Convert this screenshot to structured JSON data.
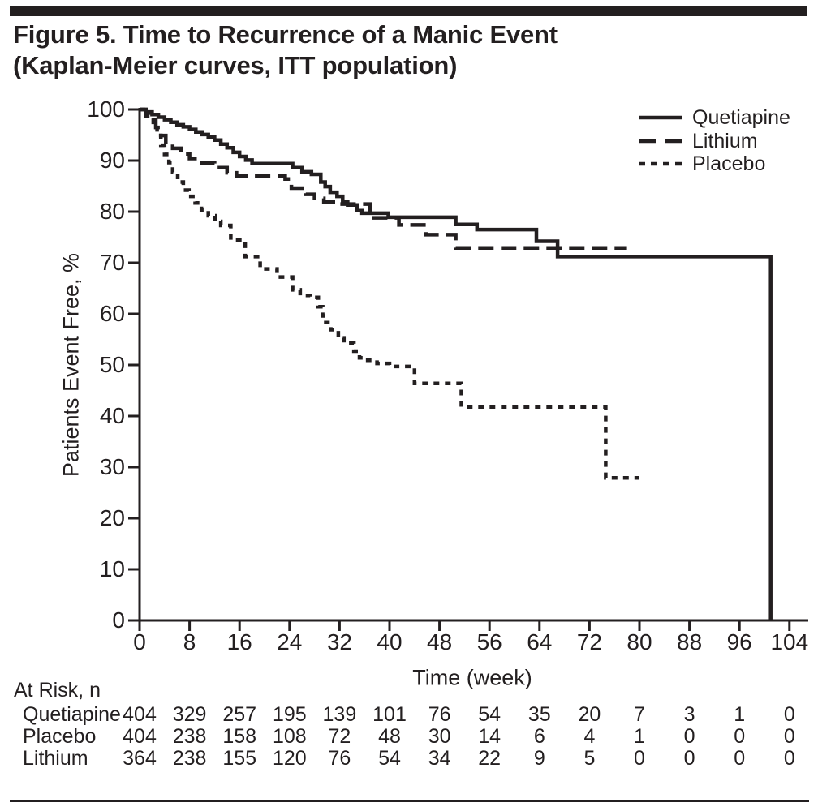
{
  "title": {
    "line1": "Figure 5. Time to Recurrence of a Manic Event",
    "line2": "(Kaplan-Meier curves, ITT population)"
  },
  "colors": {
    "ink": "#231f20",
    "background": "#ffffff"
  },
  "chart_data": {
    "type": "line",
    "subtype": "kaplan-meier-step",
    "title": "Figure 5. Time to Recurrence of a Manic Event (Kaplan-Meier curves, ITT population)",
    "xlabel": "Time (week)",
    "ylabel": "Patients Event Free, %",
    "xlim": [
      0,
      104
    ],
    "ylim": [
      0,
      100
    ],
    "x_ticks": [
      0,
      8,
      16,
      24,
      32,
      40,
      48,
      56,
      64,
      72,
      80,
      88,
      96,
      104
    ],
    "y_ticks": [
      0,
      10,
      20,
      30,
      40,
      50,
      60,
      70,
      80,
      90,
      100
    ],
    "grid": false,
    "legend_position": "top-right",
    "series": [
      {
        "name": "Quetiapine",
        "style": "solid",
        "points": [
          [
            0,
            100
          ],
          [
            1,
            99.5
          ],
          [
            2,
            99
          ],
          [
            3,
            98.5
          ],
          [
            4,
            98
          ],
          [
            5,
            97.5
          ],
          [
            6,
            97
          ],
          [
            7,
            96.6
          ],
          [
            8,
            96.1
          ],
          [
            9,
            95.6
          ],
          [
            10,
            95.1
          ],
          [
            11,
            94.6
          ],
          [
            12,
            94
          ],
          [
            13,
            93.2
          ],
          [
            14,
            92.5
          ],
          [
            15,
            91.6
          ],
          [
            16,
            90.8
          ],
          [
            17,
            90.1
          ],
          [
            18,
            89.4
          ],
          [
            24.5,
            88.6
          ],
          [
            26,
            87.8
          ],
          [
            27.5,
            87.3
          ],
          [
            29,
            85.8
          ],
          [
            29.7,
            84.9
          ],
          [
            30.5,
            83.8
          ],
          [
            31.6,
            83
          ],
          [
            32.5,
            82
          ],
          [
            33.3,
            81.3
          ],
          [
            34.8,
            80.2
          ],
          [
            35.6,
            79.7
          ],
          [
            39.8,
            78.9
          ],
          [
            50.6,
            77.5
          ],
          [
            54,
            76.5
          ],
          [
            63.5,
            74.2
          ],
          [
            66.9,
            71.2
          ],
          [
            101,
            0
          ]
        ]
      },
      {
        "name": "Lithium",
        "style": "long-dash",
        "points": [
          [
            0,
            100
          ],
          [
            1,
            99.3
          ],
          [
            2,
            98
          ],
          [
            2.6,
            96.5
          ],
          [
            3.4,
            94.9
          ],
          [
            4.2,
            93.3
          ],
          [
            5.3,
            92.4
          ],
          [
            6.6,
            91.3
          ],
          [
            8,
            90.4
          ],
          [
            10,
            89.5
          ],
          [
            12,
            88.6
          ],
          [
            14,
            87.6
          ],
          [
            15.5,
            87
          ],
          [
            23.3,
            86.4
          ],
          [
            24.3,
            84.6
          ],
          [
            26.6,
            83.4
          ],
          [
            28,
            82.6
          ],
          [
            29.5,
            81.9
          ],
          [
            32,
            81.5
          ],
          [
            36.9,
            78.8
          ],
          [
            41.5,
            77.4
          ],
          [
            45.8,
            75.5
          ],
          [
            50.6,
            72.9
          ],
          [
            78,
            72.9
          ]
        ]
      },
      {
        "name": "Placebo",
        "style": "dotted",
        "points": [
          [
            0,
            100
          ],
          [
            1,
            98.6
          ],
          [
            2.2,
            96.8
          ],
          [
            2.8,
            94.9
          ],
          [
            3.4,
            93
          ],
          [
            4,
            91.2
          ],
          [
            4.7,
            89.6
          ],
          [
            5.3,
            87.7
          ],
          [
            6.1,
            85.8
          ],
          [
            7,
            84.2
          ],
          [
            7.9,
            83
          ],
          [
            8.9,
            81.7
          ],
          [
            9.9,
            80.3
          ],
          [
            11,
            79.2
          ],
          [
            12.1,
            78.1
          ],
          [
            13,
            77.3
          ],
          [
            14.6,
            74.4
          ],
          [
            16.9,
            71.2
          ],
          [
            19.3,
            68.8
          ],
          [
            22,
            67.2
          ],
          [
            24.5,
            64.7
          ],
          [
            25.7,
            63.6
          ],
          [
            27.3,
            63.2
          ],
          [
            28.6,
            61.4
          ],
          [
            29.3,
            59.6
          ],
          [
            29.8,
            58.3
          ],
          [
            30.6,
            56.9
          ],
          [
            31.8,
            55.3
          ],
          [
            32.7,
            54.3
          ],
          [
            34.3,
            52.7
          ],
          [
            35.2,
            51.4
          ],
          [
            36.5,
            50.9
          ],
          [
            38,
            50.3
          ],
          [
            40,
            49.7
          ],
          [
            44,
            46.4
          ],
          [
            51.5,
            41.8
          ],
          [
            74.6,
            27.9
          ],
          [
            80,
            27.9
          ]
        ]
      }
    ],
    "at_risk": {
      "label": "At Risk, n",
      "weeks": [
        0,
        8,
        16,
        24,
        32,
        40,
        48,
        56,
        64,
        72,
        80,
        88,
        96,
        104
      ],
      "rows": [
        {
          "name": "Quetiapine",
          "values": [
            404,
            329,
            257,
            195,
            139,
            101,
            76,
            54,
            35,
            20,
            7,
            3,
            1,
            0
          ]
        },
        {
          "name": "Placebo",
          "values": [
            404,
            238,
            158,
            108,
            72,
            48,
            30,
            14,
            6,
            4,
            1,
            0,
            0,
            0
          ]
        },
        {
          "name": "Lithium",
          "values": [
            364,
            238,
            155,
            120,
            76,
            54,
            34,
            22,
            9,
            5,
            0,
            0,
            0,
            0
          ]
        }
      ]
    }
  }
}
